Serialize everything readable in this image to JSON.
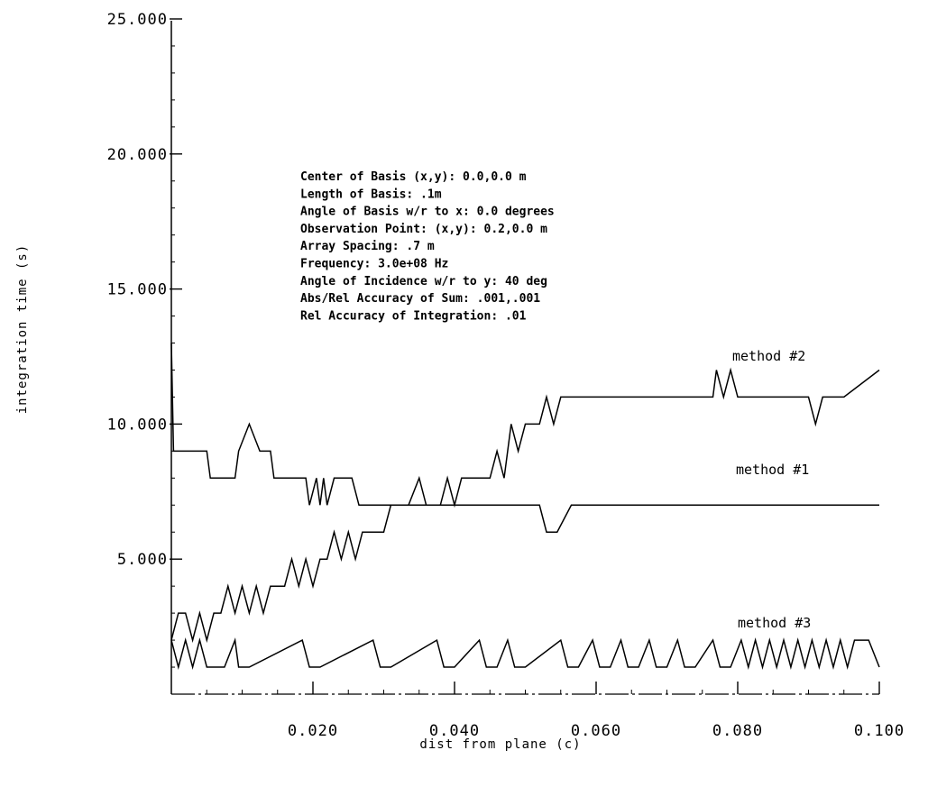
{
  "chart_data": {
    "type": "line",
    "xlabel": "dist from plane (c)",
    "ylabel": "integration time (s)",
    "xlim": [
      0,
      0.1
    ],
    "ylim": [
      0,
      25
    ],
    "x_ticks": [
      0.02,
      0.04,
      0.06,
      0.08,
      0.1
    ],
    "x_tick_labels": [
      "0.020",
      "0.040",
      "0.060",
      "0.080",
      "0.100"
    ],
    "y_ticks": [
      5,
      10,
      15,
      20,
      25
    ],
    "y_tick_labels": [
      "5.000",
      "10.000",
      "15.000",
      "20.000",
      "25.000"
    ],
    "grid": false,
    "annotation": [
      "Center of Basis (x,y): 0.0,0.0 m",
      "Length of Basis: .1m",
      "Angle of Basis w/r to x: 0.0 degrees",
      "Observation Point: (x,y): 0.2,0.0 m",
      "Array Spacing: .7 m",
      "Frequency: 3.0e+08 Hz",
      "Angle of Incidence w/r to y: 40 deg",
      "Abs/Rel Accuracy of Sum: .001,.001",
      "Rel Accuracy of Integration: .01"
    ],
    "series": [
      {
        "name": "method #2",
        "x": [
          0,
          0.0003,
          0.0005,
          0.005,
          0.0055,
          0.009,
          0.0095,
          0.011,
          0.0125,
          0.014,
          0.0145,
          0.019,
          0.0195,
          0.0205,
          0.021,
          0.0215,
          0.022,
          0.023,
          0.0235,
          0.0255,
          0.0265,
          0.0275,
          0.029,
          0.0335,
          0.035,
          0.036,
          0.038,
          0.0395,
          0.0415,
          0.043,
          0.044,
          0.0455,
          0.0465,
          0.047,
          0.0475,
          0.048,
          0.0485,
          0.0505,
          0.0515,
          0.052,
          0.053,
          0.0545,
          0.0565,
          0.0575,
          0.059,
          0.0605,
          0.062,
          0.0635,
          0.0665,
          0.068,
          0.069,
          0.0705,
          0.0725,
          0.074,
          0.075,
          0.0765,
          0.0785,
          0.0795,
          0.081,
          0.083,
          0.0835,
          0.0855,
          0.0865,
          0.088,
          0.089,
          0.0895,
          0.0915,
          0.0925,
          0.0955,
          0.0965,
          0.0975,
          0.1
        ],
        "values": [
          13,
          9,
          9,
          9,
          8,
          8,
          9,
          10,
          9,
          9,
          8,
          8,
          7,
          8,
          7,
          8,
          7,
          8,
          8,
          8,
          7,
          7,
          7,
          7,
          8,
          7,
          7,
          7,
          7,
          7,
          7,
          7,
          7,
          7,
          7,
          7,
          7,
          7,
          7,
          7,
          6,
          6,
          7,
          7,
          7,
          7,
          7,
          7,
          7,
          7,
          7,
          7,
          7,
          7,
          7,
          7,
          7,
          7,
          7,
          7,
          7,
          7,
          7,
          7,
          7,
          7,
          7,
          7,
          7,
          7,
          7,
          7
        ]
      },
      {
        "name": "method #1",
        "x": [
          0,
          0.001,
          0.002,
          0.003,
          0.004,
          0.005,
          0.006,
          0.007,
          0.008,
          0.009,
          0.01,
          0.011,
          0.012,
          0.013,
          0.014,
          0.015,
          0.016,
          0.017,
          0.018,
          0.019,
          0.02,
          0.021,
          0.022,
          0.023,
          0.024,
          0.025,
          0.026,
          0.027,
          0.028,
          0.029,
          0.03,
          0.031,
          0.032,
          0.033,
          0.034,
          0.035,
          0.036,
          0.037,
          0.038,
          0.039,
          0.04,
          0.041,
          0.042,
          0.043,
          0.044,
          0.045,
          0.046,
          0.047,
          0.048,
          0.049,
          0.05,
          0.051,
          0.052,
          0.053,
          0.054,
          0.055,
          0.056,
          0.057,
          0.058,
          0.059,
          0.06,
          0.065,
          0.07,
          0.075,
          0.0765,
          0.077,
          0.078,
          0.079,
          0.08,
          0.085,
          0.09,
          0.091,
          0.092,
          0.093,
          0.095,
          0.1
        ],
        "values": [
          2,
          3,
          3,
          2,
          3,
          2,
          3,
          3,
          4,
          3,
          4,
          3,
          4,
          3,
          4,
          4,
          4,
          5,
          4,
          5,
          4,
          5,
          5,
          6,
          5,
          6,
          5,
          6,
          6,
          6,
          6,
          7,
          7,
          7,
          7,
          7,
          7,
          7,
          7,
          8,
          7,
          8,
          8,
          8,
          8,
          8,
          9,
          8,
          10,
          9,
          10,
          10,
          10,
          11,
          10,
          11,
          11,
          11,
          11,
          11,
          11,
          11,
          11,
          11,
          11,
          12,
          11,
          12,
          11,
          11,
          11,
          10,
          11,
          11,
          11,
          12
        ]
      },
      {
        "name": "method #3",
        "x": [
          0,
          0.001,
          0.002,
          0.003,
          0.004,
          0.005,
          0.0065,
          0.0075,
          0.009,
          0.0095,
          0.0105,
          0.011,
          0.0185,
          0.0195,
          0.0205,
          0.021,
          0.0285,
          0.0295,
          0.0305,
          0.031,
          0.0375,
          0.0385,
          0.0395,
          0.04,
          0.0435,
          0.0445,
          0.0455,
          0.046,
          0.0475,
          0.0485,
          0.0495,
          0.05,
          0.055,
          0.056,
          0.057,
          0.0575,
          0.0595,
          0.0605,
          0.0615,
          0.062,
          0.0635,
          0.0645,
          0.0655,
          0.066,
          0.0675,
          0.0685,
          0.0695,
          0.07,
          0.0715,
          0.0725,
          0.0735,
          0.074,
          0.0765,
          0.0775,
          0.0785,
          0.079,
          0.0805,
          0.0815,
          0.0825,
          0.0835,
          0.0845,
          0.0855,
          0.0865,
          0.0875,
          0.0885,
          0.0895,
          0.0905,
          0.0915,
          0.0925,
          0.0935,
          0.0945,
          0.0955,
          0.0965,
          0.0975,
          0.0985,
          0.1
        ],
        "values": [
          2,
          1,
          2,
          1,
          2,
          1,
          1,
          1,
          2,
          1,
          1,
          1,
          2,
          1,
          1,
          1,
          2,
          1,
          1,
          1,
          2,
          1,
          1,
          1,
          2,
          1,
          1,
          1,
          2,
          1,
          1,
          1,
          2,
          1,
          1,
          1,
          2,
          1,
          1,
          1,
          2,
          1,
          1,
          1,
          2,
          1,
          1,
          1,
          2,
          1,
          1,
          1,
          2,
          1,
          1,
          1,
          2,
          1,
          2,
          1,
          2,
          1,
          2,
          1,
          2,
          1,
          2,
          1,
          2,
          1,
          2,
          1,
          2,
          2,
          2,
          1
        ]
      }
    ]
  }
}
